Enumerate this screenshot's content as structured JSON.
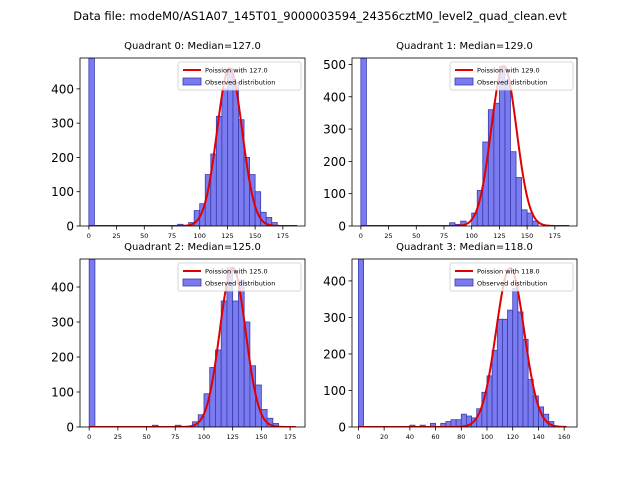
{
  "figure": {
    "suptitle": "Data file: modeM0/AS1A07_145T01_9000003594_24356cztM0_level2_quad_clean.evt"
  },
  "colors": {
    "bar_fill": "#7b7bf0",
    "bar_edge": "#3b3bb0",
    "fit_line": "#e00000"
  },
  "chart_data": [
    {
      "type": "bar",
      "title": "Quadrant 0: Median=127.0",
      "xlim": [
        -8,
        195
      ],
      "ylim": [
        0,
        490
      ],
      "xticks": [
        0,
        25,
        50,
        75,
        100,
        125,
        150,
        175
      ],
      "yticks": [
        0,
        100,
        200,
        300,
        400
      ],
      "bin_width": 5,
      "median": 127.0,
      "fit_peak": 460,
      "fit_sigma": 11.3,
      "fit_range": [
        0,
        188
      ],
      "legend": [
        "Poission with 127.0",
        "Observed distribution"
      ],
      "bars": [
        {
          "x": 0,
          "h": 490
        },
        {
          "x": 80,
          "h": 5
        },
        {
          "x": 90,
          "h": 10
        },
        {
          "x": 95,
          "h": 45
        },
        {
          "x": 100,
          "h": 65
        },
        {
          "x": 105,
          "h": 150
        },
        {
          "x": 110,
          "h": 210
        },
        {
          "x": 115,
          "h": 320
        },
        {
          "x": 120,
          "h": 400
        },
        {
          "x": 125,
          "h": 460
        },
        {
          "x": 130,
          "h": 420
        },
        {
          "x": 135,
          "h": 310
        },
        {
          "x": 140,
          "h": 200
        },
        {
          "x": 145,
          "h": 150
        },
        {
          "x": 150,
          "h": 100
        },
        {
          "x": 155,
          "h": 40
        },
        {
          "x": 160,
          "h": 25
        },
        {
          "x": 165,
          "h": 10
        }
      ]
    },
    {
      "type": "bar",
      "title": "Quadrant 1: Median=129.0",
      "xlim": [
        -8,
        195
      ],
      "ylim": [
        0,
        520
      ],
      "xticks": [
        0,
        25,
        50,
        75,
        100,
        125,
        150,
        175
      ],
      "yticks": [
        0,
        100,
        200,
        300,
        400,
        500
      ],
      "bin_width": 5,
      "median": 129.0,
      "fit_peak": 495,
      "fit_sigma": 11.4,
      "fit_range": [
        0,
        188
      ],
      "legend": [
        "Poission with 129.0",
        "Observed distribution"
      ],
      "bars": [
        {
          "x": 0,
          "h": 520
        },
        {
          "x": 80,
          "h": 10
        },
        {
          "x": 85,
          "h": 5
        },
        {
          "x": 90,
          "h": 15
        },
        {
          "x": 100,
          "h": 40
        },
        {
          "x": 105,
          "h": 110
        },
        {
          "x": 110,
          "h": 260
        },
        {
          "x": 115,
          "h": 360
        },
        {
          "x": 120,
          "h": 380
        },
        {
          "x": 125,
          "h": 495
        },
        {
          "x": 130,
          "h": 450
        },
        {
          "x": 135,
          "h": 230
        },
        {
          "x": 140,
          "h": 150
        },
        {
          "x": 145,
          "h": 50
        },
        {
          "x": 150,
          "h": 40
        },
        {
          "x": 155,
          "h": 15
        }
      ]
    },
    {
      "type": "bar",
      "title": "Quadrant 2: Median=125.0",
      "xlim": [
        -8,
        188
      ],
      "ylim": [
        0,
        480
      ],
      "xticks": [
        0,
        25,
        50,
        75,
        100,
        125,
        150,
        175
      ],
      "yticks": [
        0,
        100,
        200,
        300,
        400
      ],
      "bin_width": 5,
      "median": 125.0,
      "fit_peak": 455,
      "fit_sigma": 11.2,
      "fit_range": [
        0,
        180
      ],
      "legend": [
        "Poission with 125.0",
        "Observed distribution"
      ],
      "bars": [
        {
          "x": 0,
          "h": 480
        },
        {
          "x": 55,
          "h": 5
        },
        {
          "x": 75,
          "h": 5
        },
        {
          "x": 90,
          "h": 15
        },
        {
          "x": 95,
          "h": 35
        },
        {
          "x": 100,
          "h": 95
        },
        {
          "x": 105,
          "h": 170
        },
        {
          "x": 110,
          "h": 220
        },
        {
          "x": 115,
          "h": 360
        },
        {
          "x": 120,
          "h": 455
        },
        {
          "x": 125,
          "h": 360
        },
        {
          "x": 130,
          "h": 420
        },
        {
          "x": 135,
          "h": 300
        },
        {
          "x": 140,
          "h": 175
        },
        {
          "x": 145,
          "h": 120
        },
        {
          "x": 150,
          "h": 50
        },
        {
          "x": 155,
          "h": 25
        },
        {
          "x": 160,
          "h": 10
        }
      ]
    },
    {
      "type": "bar",
      "title": "Quadrant 3: Median=118.0",
      "xlim": [
        -5,
        170
      ],
      "ylim": [
        0,
        460
      ],
      "xticks": [
        0,
        20,
        40,
        60,
        80,
        100,
        120,
        140,
        160
      ],
      "yticks": [
        0,
        100,
        200,
        300,
        400
      ],
      "bin_width": 4,
      "median": 118.0,
      "fit_peak": 435,
      "fit_sigma": 10.9,
      "fit_range": [
        0,
        162
      ],
      "legend": [
        "Poission with 118.0",
        "Observed distribution"
      ],
      "bars": [
        {
          "x": 0,
          "h": 460
        },
        {
          "x": 40,
          "h": 5
        },
        {
          "x": 48,
          "h": 5
        },
        {
          "x": 56,
          "h": 10
        },
        {
          "x": 64,
          "h": 10
        },
        {
          "x": 68,
          "h": 15
        },
        {
          "x": 72,
          "h": 20
        },
        {
          "x": 76,
          "h": 20
        },
        {
          "x": 80,
          "h": 35
        },
        {
          "x": 84,
          "h": 30
        },
        {
          "x": 88,
          "h": 25
        },
        {
          "x": 92,
          "h": 50
        },
        {
          "x": 96,
          "h": 95
        },
        {
          "x": 100,
          "h": 140
        },
        {
          "x": 104,
          "h": 210
        },
        {
          "x": 108,
          "h": 295
        },
        {
          "x": 112,
          "h": 295
        },
        {
          "x": 116,
          "h": 320
        },
        {
          "x": 120,
          "h": 380
        },
        {
          "x": 124,
          "h": 315
        },
        {
          "x": 128,
          "h": 240
        },
        {
          "x": 132,
          "h": 130
        },
        {
          "x": 136,
          "h": 85
        },
        {
          "x": 140,
          "h": 55
        },
        {
          "x": 144,
          "h": 35
        },
        {
          "x": 148,
          "h": 15
        }
      ]
    }
  ]
}
